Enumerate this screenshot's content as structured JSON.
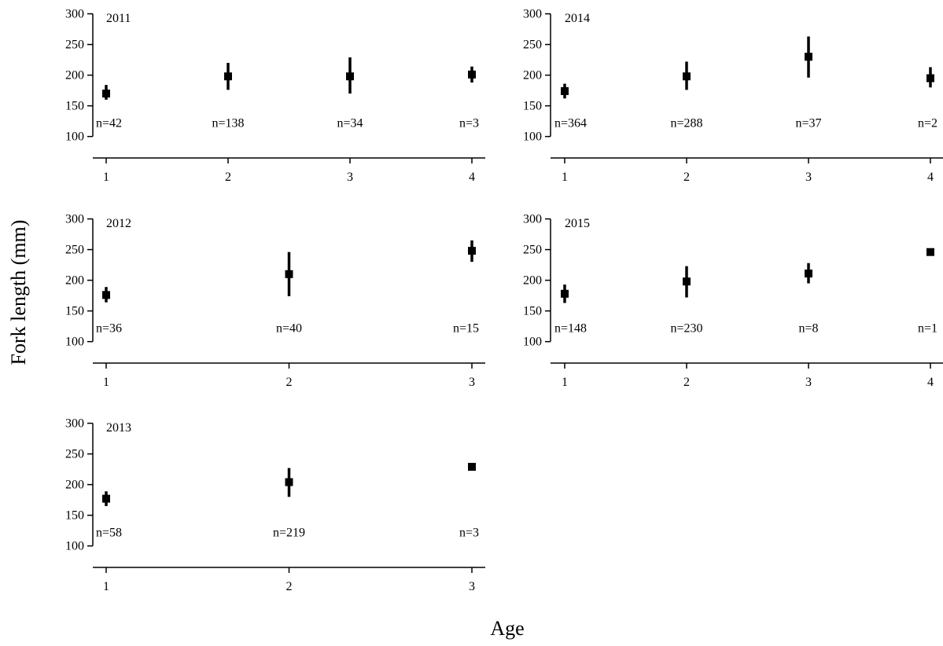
{
  "figure": {
    "ylabel": "Fork length (mm)",
    "xlabel": "Age",
    "colors": {
      "marker": "#000000",
      "axis": "#000000"
    }
  },
  "chart_data": [
    {
      "type": "scatter",
      "title": "2011",
      "x": [
        1,
        2,
        3,
        4
      ],
      "y": [
        170,
        198,
        198,
        201
      ],
      "err_low": [
        160,
        176,
        170,
        188
      ],
      "err_high": [
        184,
        220,
        229,
        214
      ],
      "n_labels": [
        "n=42",
        "n=138",
        "n=34",
        "n=3"
      ],
      "xticks": [
        "1",
        "2",
        "3",
        "4"
      ],
      "yticks": [
        "100",
        "150",
        "200",
        "250",
        "300"
      ],
      "xlim": [
        1,
        4
      ],
      "ylim": [
        65,
        302
      ],
      "grid": false
    },
    {
      "type": "scatter",
      "title": "2014",
      "x": [
        1,
        2,
        3,
        4
      ],
      "y": [
        174,
        198,
        230,
        195
      ],
      "err_low": [
        162,
        176,
        196,
        180
      ],
      "err_high": [
        186,
        222,
        263,
        213
      ],
      "n_labels": [
        "n=364",
        "n=288",
        "n=37",
        "n=2"
      ],
      "xticks": [
        "1",
        "2",
        "3",
        "4"
      ],
      "yticks": [
        "100",
        "150",
        "200",
        "250",
        "300"
      ],
      "xlim": [
        1,
        4
      ],
      "ylim": [
        65,
        302
      ],
      "grid": false
    },
    {
      "type": "scatter",
      "title": "2012",
      "x": [
        1,
        2,
        3
      ],
      "y": [
        176,
        210,
        248
      ],
      "err_low": [
        164,
        174,
        230
      ],
      "err_high": [
        189,
        246,
        265
      ],
      "n_labels": [
        "n=36",
        "n=40",
        "n=15"
      ],
      "xticks": [
        "1",
        "2",
        "3"
      ],
      "yticks": [
        "100",
        "150",
        "200",
        "250",
        "300"
      ],
      "xlim": [
        1,
        3
      ],
      "ylim": [
        65,
        302
      ],
      "grid": false
    },
    {
      "type": "scatter",
      "title": "2015",
      "x": [
        1,
        2,
        3,
        4
      ],
      "y": [
        178,
        198,
        211,
        246
      ],
      "err_low": [
        163,
        172,
        195,
        246
      ],
      "err_high": [
        193,
        223,
        228,
        246
      ],
      "n_labels": [
        "n=148",
        "n=230",
        "n=8",
        "n=1"
      ],
      "xticks": [
        "1",
        "2",
        "3",
        "4"
      ],
      "yticks": [
        "100",
        "150",
        "200",
        "250",
        "300"
      ],
      "xlim": [
        1,
        4
      ],
      "ylim": [
        65,
        302
      ],
      "grid": false
    },
    {
      "type": "scatter",
      "title": "2013",
      "x": [
        1,
        2,
        3
      ],
      "y": [
        177,
        204,
        229
      ],
      "err_low": [
        165,
        180,
        229
      ],
      "err_high": [
        189,
        227,
        229
      ],
      "n_labels": [
        "n=58",
        "n=219",
        "n=3"
      ],
      "xticks": [
        "1",
        "2",
        "3"
      ],
      "yticks": [
        "100",
        "150",
        "200",
        "250",
        "300"
      ],
      "xlim": [
        1,
        3
      ],
      "ylim": [
        65,
        302
      ],
      "grid": false
    }
  ]
}
